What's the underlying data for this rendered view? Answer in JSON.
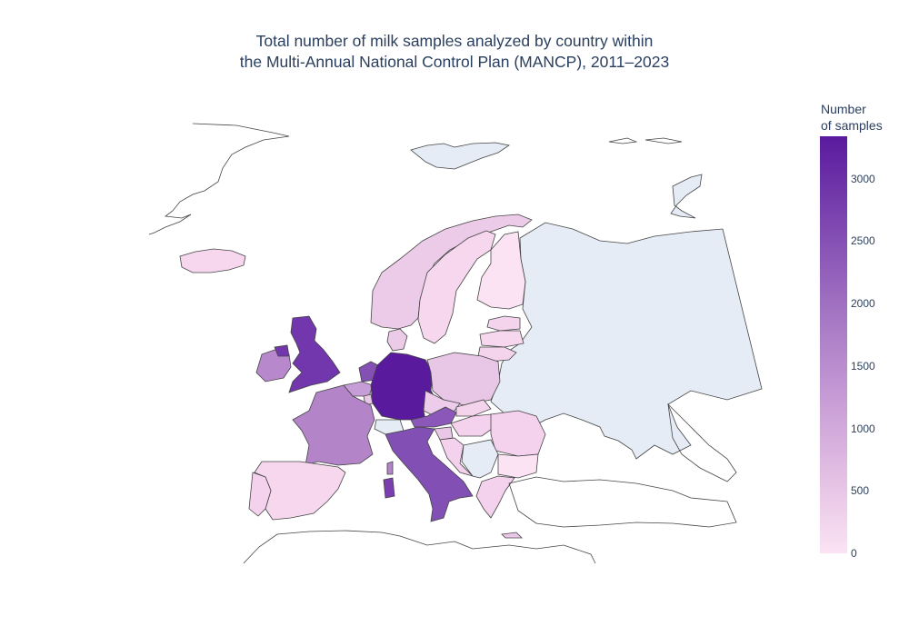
{
  "title": {
    "line1": "Total number of milk samples analyzed by country within",
    "line2": "the Multi-Annual National Control Plan (MANCP), 2011–2023"
  },
  "colorbar": {
    "title_line1": "Number",
    "title_line2": "of samples",
    "min": 0,
    "max": 3340,
    "ticks": [
      "0",
      "500",
      "1000",
      "1500",
      "2000",
      "2500",
      "3000"
    ],
    "tick_values": [
      0,
      500,
      1000,
      1500,
      2000,
      2500,
      3000
    ]
  },
  "colors": {
    "no_data": "#e5ecf6",
    "low": "#fbe3f4",
    "high": "#5a1a9e",
    "border": "#444444"
  },
  "chart_data": {
    "type": "choropleth",
    "scope": "europe",
    "z_min": 0,
    "z_max": 3340,
    "countries": [
      {
        "name": "Germany",
        "value": 3340
      },
      {
        "name": "United Kingdom",
        "value": 2400
      },
      {
        "name": "Italy",
        "value": 2100
      },
      {
        "name": "Austria",
        "value": 2100
      },
      {
        "name": "Netherlands",
        "value": 1900
      },
      {
        "name": "France",
        "value": 1600
      },
      {
        "name": "Ireland",
        "value": 1400
      },
      {
        "name": "Belgium",
        "value": 900
      },
      {
        "name": "Poland",
        "value": 700
      },
      {
        "name": "Norway",
        "value": 600
      },
      {
        "name": "Sweden",
        "value": 350
      },
      {
        "name": "Denmark",
        "value": 600
      },
      {
        "name": "Czechia",
        "value": 500
      },
      {
        "name": "Spain",
        "value": 200
      },
      {
        "name": "Portugal",
        "value": 200
      },
      {
        "name": "Iceland",
        "value": 150
      },
      {
        "name": "Finland",
        "value": 150
      },
      {
        "name": "Estonia",
        "value": 300
      },
      {
        "name": "Latvia",
        "value": 250
      },
      {
        "name": "Lithuania",
        "value": 300
      },
      {
        "name": "Slovakia",
        "value": 300
      },
      {
        "name": "Hungary",
        "value": 250
      },
      {
        "name": "Slovenia",
        "value": 400
      },
      {
        "name": "Croatia",
        "value": 300
      },
      {
        "name": "Romania",
        "value": 300
      },
      {
        "name": "Bulgaria",
        "value": 200
      },
      {
        "name": "Greece",
        "value": 300
      },
      {
        "name": "Cyprus",
        "value": 400
      },
      {
        "name": "Luxembourg",
        "value": 400
      }
    ]
  }
}
